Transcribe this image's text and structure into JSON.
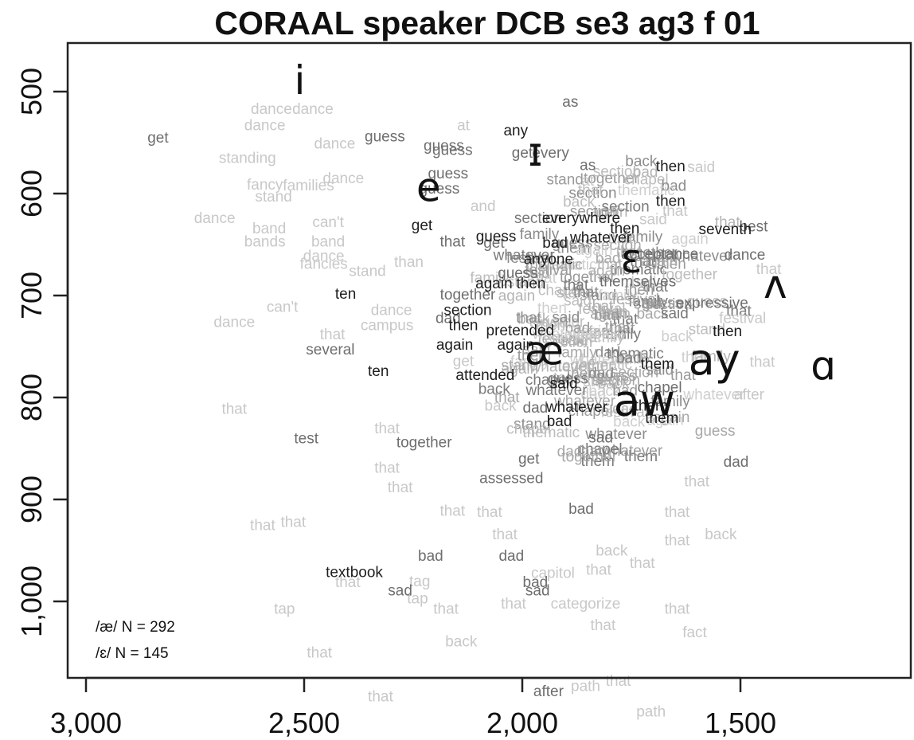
{
  "chart_data": {
    "type": "scatter",
    "title": "CORAAL speaker DCB  se3  ag3  f  01",
    "xlabel": "",
    "ylabel": "",
    "x_axis": {
      "reversed": true,
      "range": [
        3000,
        1100
      ],
      "ticks": [
        3000,
        2500,
        2000,
        1500
      ],
      "tick_labels": [
        "3,000",
        "2,500",
        "2,000",
        "1,500"
      ]
    },
    "y_axis": {
      "reversed": true,
      "range": [
        455,
        1075
      ],
      "ticks": [
        500,
        600,
        700,
        800,
        900,
        1000
      ],
      "tick_labels": [
        "500",
        "600",
        "700",
        "800",
        "900",
        "1,000"
      ]
    },
    "grid": false,
    "annotations": [
      "/æ/ N = 292",
      "/ɛ/ N = 145"
    ],
    "vowel_means": [
      {
        "label": "i",
        "x": 2510,
        "y": 490
      },
      {
        "label": "ɪ",
        "x": 1970,
        "y": 560
      },
      {
        "label": "e",
        "x": 2215,
        "y": 595
      },
      {
        "label": "ɛ",
        "x": 1750,
        "y": 665
      },
      {
        "label": "ʌ",
        "x": 1420,
        "y": 690
      },
      {
        "label": "æ",
        "x": 1950,
        "y": 755
      },
      {
        "label": "ay",
        "x": 1560,
        "y": 765
      },
      {
        "label": "ɑ",
        "x": 1310,
        "y": 770
      },
      {
        "label": "aw",
        "x": 1720,
        "y": 805
      }
    ],
    "tokens": [
      {
        "w": "as",
        "x": 1890,
        "y": 515,
        "shade": "mid"
      },
      {
        "w": "dance",
        "x": 2575,
        "y": 522,
        "shade": "light"
      },
      {
        "w": "dance",
        "x": 2480,
        "y": 522,
        "shade": "light"
      },
      {
        "w": "dance",
        "x": 2590,
        "y": 538,
        "shade": "light"
      },
      {
        "w": "at",
        "x": 2135,
        "y": 538,
        "shade": "light"
      },
      {
        "w": "any",
        "x": 2015,
        "y": 543,
        "shade": "dark"
      },
      {
        "w": "get",
        "x": 2835,
        "y": 550,
        "shade": "mid"
      },
      {
        "w": "guess",
        "x": 2315,
        "y": 549,
        "shade": "mid"
      },
      {
        "w": "dance",
        "x": 2430,
        "y": 556,
        "shade": "light"
      },
      {
        "w": "guess",
        "x": 2180,
        "y": 558,
        "shade": "mid"
      },
      {
        "w": "guess",
        "x": 2160,
        "y": 562,
        "shade": "mid"
      },
      {
        "w": "get",
        "x": 2000,
        "y": 565,
        "shade": "mid"
      },
      {
        "w": "every",
        "x": 1935,
        "y": 565,
        "shade": "mid"
      },
      {
        "w": "standing",
        "x": 2630,
        "y": 570,
        "shade": "light"
      },
      {
        "w": "as",
        "x": 1850,
        "y": 577,
        "shade": "mid"
      },
      {
        "w": "then",
        "x": 1660,
        "y": 578,
        "shade": "dark"
      },
      {
        "w": "said",
        "x": 1590,
        "y": 579,
        "shade": "light"
      },
      {
        "w": "guess",
        "x": 2170,
        "y": 585,
        "shade": "mid"
      },
      {
        "w": "dance",
        "x": 2410,
        "y": 590,
        "shade": "light"
      },
      {
        "w": "at",
        "x": 1850,
        "y": 592,
        "shade": "light"
      },
      {
        "w": "fancy",
        "x": 2590,
        "y": 596,
        "shade": "light"
      },
      {
        "w": "families",
        "x": 2490,
        "y": 597,
        "shade": "light"
      },
      {
        "w": "guess",
        "x": 2190,
        "y": 600,
        "shade": "mid"
      },
      {
        "w": "stand",
        "x": 2570,
        "y": 608,
        "shade": "light"
      },
      {
        "w": "then",
        "x": 1660,
        "y": 612,
        "shade": "dark"
      },
      {
        "w": "and",
        "x": 2090,
        "y": 617,
        "shade": "light"
      },
      {
        "w": "that",
        "x": 1650,
        "y": 622,
        "shade": "light"
      },
      {
        "w": "dance",
        "x": 2705,
        "y": 629,
        "shade": "light"
      },
      {
        "w": "everywhere",
        "x": 1865,
        "y": 629,
        "shade": "dark"
      },
      {
        "w": "can't",
        "x": 2445,
        "y": 633,
        "shade": "light"
      },
      {
        "w": "said",
        "x": 1700,
        "y": 630,
        "shade": "light"
      },
      {
        "w": "get",
        "x": 2230,
        "y": 636,
        "shade": "dark"
      },
      {
        "w": "seventh",
        "x": 1535,
        "y": 640,
        "shade": "dark"
      },
      {
        "w": "band",
        "x": 2580,
        "y": 639,
        "shade": "light"
      },
      {
        "w": "then",
        "x": 1765,
        "y": 639,
        "shade": "dark"
      },
      {
        "w": "best",
        "x": 1470,
        "y": 637,
        "shade": "mid"
      },
      {
        "w": "guess",
        "x": 2060,
        "y": 647,
        "shade": "dark"
      },
      {
        "w": "whatever",
        "x": 1820,
        "y": 648,
        "shade": "dark"
      },
      {
        "w": "bands",
        "x": 2590,
        "y": 652,
        "shade": "light"
      },
      {
        "w": "band",
        "x": 2445,
        "y": 652,
        "shade": "light"
      },
      {
        "w": "that",
        "x": 2160,
        "y": 652,
        "shade": "mid"
      },
      {
        "w": "get",
        "x": 2065,
        "y": 653,
        "shade": "mid"
      },
      {
        "w": "bad",
        "x": 1925,
        "y": 653,
        "shade": "dark"
      },
      {
        "w": "acceptance",
        "x": 1685,
        "y": 664,
        "shade": "mid"
      },
      {
        "w": "dance",
        "x": 1490,
        "y": 665,
        "shade": "mid"
      },
      {
        "w": "dance",
        "x": 2455,
        "y": 666,
        "shade": "light"
      },
      {
        "w": "anyone",
        "x": 1940,
        "y": 669,
        "shade": "dark"
      },
      {
        "w": "fancies",
        "x": 2455,
        "y": 674,
        "shade": "light"
      },
      {
        "w": "than",
        "x": 2260,
        "y": 672,
        "shade": "light"
      },
      {
        "w": "that",
        "x": 1435,
        "y": 679,
        "shade": "light"
      },
      {
        "w": "stand",
        "x": 2355,
        "y": 681,
        "shade": "light"
      },
      {
        "w": "guess",
        "x": 2010,
        "y": 683,
        "shade": "mid"
      },
      {
        "w": "again",
        "x": 2065,
        "y": 693,
        "shade": "dark"
      },
      {
        "w": "then",
        "x": 1980,
        "y": 693,
        "shade": "dark"
      },
      {
        "w": "themselves",
        "x": 1735,
        "y": 691,
        "shade": "mid"
      },
      {
        "w": "ten",
        "x": 2405,
        "y": 703,
        "shade": "dark"
      },
      {
        "w": "together",
        "x": 2125,
        "y": 704,
        "shade": "mid"
      },
      {
        "w": "can't",
        "x": 2550,
        "y": 716,
        "shade": "light"
      },
      {
        "w": "dance",
        "x": 2300,
        "y": 719,
        "shade": "light"
      },
      {
        "w": "section",
        "x": 2125,
        "y": 719,
        "shade": "dark"
      },
      {
        "w": "expressive",
        "x": 1565,
        "y": 712,
        "shade": "mid"
      },
      {
        "w": "dance",
        "x": 2660,
        "y": 731,
        "shade": "light"
      },
      {
        "w": "dad",
        "x": 2170,
        "y": 727,
        "shade": "mid"
      },
      {
        "w": "festival",
        "x": 1495,
        "y": 727,
        "shade": "light"
      },
      {
        "w": "campus",
        "x": 2310,
        "y": 734,
        "shade": "light"
      },
      {
        "w": "then",
        "x": 2135,
        "y": 734,
        "shade": "dark"
      },
      {
        "w": "pretended",
        "x": 2005,
        "y": 739,
        "shade": "dark"
      },
      {
        "w": "then",
        "x": 1530,
        "y": 740,
        "shade": "dark"
      },
      {
        "w": "that",
        "x": 2435,
        "y": 743,
        "shade": "light"
      },
      {
        "w": "again",
        "x": 2155,
        "y": 753,
        "shade": "dark"
      },
      {
        "w": "again",
        "x": 2015,
        "y": 753,
        "shade": "dark"
      },
      {
        "w": "several",
        "x": 2440,
        "y": 758,
        "shade": "mid"
      },
      {
        "w": "that",
        "x": 1450,
        "y": 770,
        "shade": "light"
      },
      {
        "w": "get",
        "x": 2135,
        "y": 769,
        "shade": "light"
      },
      {
        "w": "them",
        "x": 1690,
        "y": 772,
        "shade": "dark"
      },
      {
        "w": "ten",
        "x": 2330,
        "y": 779,
        "shade": "dark"
      },
      {
        "w": "attended",
        "x": 2085,
        "y": 783,
        "shade": "dark"
      },
      {
        "w": "said",
        "x": 1905,
        "y": 791,
        "shade": "dark"
      },
      {
        "w": "chapel",
        "x": 1685,
        "y": 795,
        "shade": "mid"
      },
      {
        "w": "after",
        "x": 1480,
        "y": 802,
        "shade": "light"
      },
      {
        "w": "back",
        "x": 2050,
        "y": 813,
        "shade": "light"
      },
      {
        "w": "whatever",
        "x": 1875,
        "y": 814,
        "shade": "dark"
      },
      {
        "w": "them",
        "x": 1705,
        "y": 813,
        "shade": "dark"
      },
      {
        "w": "that",
        "x": 2660,
        "y": 816,
        "shade": "light"
      },
      {
        "w": "dad",
        "x": 1970,
        "y": 815,
        "shade": "mid"
      },
      {
        "w": "them",
        "x": 1680,
        "y": 825,
        "shade": "dark"
      },
      {
        "w": "bad",
        "x": 1915,
        "y": 828,
        "shade": "dark"
      },
      {
        "w": "that",
        "x": 2310,
        "y": 835,
        "shade": "light"
      },
      {
        "w": "test",
        "x": 2495,
        "y": 845,
        "shade": "mid"
      },
      {
        "w": "sad",
        "x": 1820,
        "y": 844,
        "shade": "mid"
      },
      {
        "w": "together",
        "x": 2225,
        "y": 849,
        "shade": "mid"
      },
      {
        "w": "dad",
        "x": 1510,
        "y": 868,
        "shade": "mid"
      },
      {
        "w": "get",
        "x": 1985,
        "y": 865,
        "shade": "mid"
      },
      {
        "w": "that",
        "x": 2310,
        "y": 874,
        "shade": "light"
      },
      {
        "w": "assessed",
        "x": 2025,
        "y": 884,
        "shade": "mid"
      },
      {
        "w": "that",
        "x": 1600,
        "y": 887,
        "shade": "light"
      },
      {
        "w": "that",
        "x": 2280,
        "y": 893,
        "shade": "light"
      },
      {
        "w": "bad",
        "x": 1865,
        "y": 914,
        "shade": "mid"
      },
      {
        "w": "that",
        "x": 2160,
        "y": 916,
        "shade": "light"
      },
      {
        "w": "that",
        "x": 2075,
        "y": 917,
        "shade": "light"
      },
      {
        "w": "that",
        "x": 1645,
        "y": 917,
        "shade": "light"
      },
      {
        "w": "that",
        "x": 2525,
        "y": 927,
        "shade": "light"
      },
      {
        "w": "that",
        "x": 2595,
        "y": 930,
        "shade": "light"
      },
      {
        "w": "that",
        "x": 2040,
        "y": 939,
        "shade": "light"
      },
      {
        "w": "back",
        "x": 1545,
        "y": 939,
        "shade": "light"
      },
      {
        "w": "that",
        "x": 1645,
        "y": 945,
        "shade": "light"
      },
      {
        "w": "back",
        "x": 1795,
        "y": 955,
        "shade": "light"
      },
      {
        "w": "bad",
        "x": 2210,
        "y": 960,
        "shade": "mid"
      },
      {
        "w": "dad",
        "x": 2025,
        "y": 960,
        "shade": "mid"
      },
      {
        "w": "textbook",
        "x": 2385,
        "y": 976,
        "shade": "dark"
      },
      {
        "w": "capitol",
        "x": 1930,
        "y": 977,
        "shade": "light"
      },
      {
        "w": "that",
        "x": 1825,
        "y": 974,
        "shade": "light"
      },
      {
        "w": "that",
        "x": 1725,
        "y": 967,
        "shade": "light"
      },
      {
        "w": "bad",
        "x": 1970,
        "y": 986,
        "shade": "mid"
      },
      {
        "w": "that",
        "x": 2400,
        "y": 986,
        "shade": "light"
      },
      {
        "w": "tag",
        "x": 2235,
        "y": 985,
        "shade": "light"
      },
      {
        "w": "sad",
        "x": 2280,
        "y": 994,
        "shade": "mid"
      },
      {
        "w": "sad",
        "x": 1965,
        "y": 994,
        "shade": "mid"
      },
      {
        "w": "tap",
        "x": 2240,
        "y": 1002,
        "shade": "light"
      },
      {
        "w": "that",
        "x": 2020,
        "y": 1007,
        "shade": "light"
      },
      {
        "w": "categorize",
        "x": 1855,
        "y": 1007,
        "shade": "light"
      },
      {
        "w": "tap",
        "x": 2545,
        "y": 1012,
        "shade": "light"
      },
      {
        "w": "that",
        "x": 2175,
        "y": 1012,
        "shade": "light"
      },
      {
        "w": "that",
        "x": 1645,
        "y": 1012,
        "shade": "light"
      },
      {
        "w": "that",
        "x": 1815,
        "y": 1028,
        "shade": "light"
      },
      {
        "w": "fact",
        "x": 1605,
        "y": 1035,
        "shade": "light"
      },
      {
        "w": "back",
        "x": 2140,
        "y": 1044,
        "shade": "light"
      },
      {
        "w": "that",
        "x": 2465,
        "y": 1055,
        "shade": "light"
      },
      {
        "w": "that",
        "x": 1780,
        "y": 1083,
        "shade": "light"
      },
      {
        "w": "path",
        "x": 1855,
        "y": 1088,
        "shade": "light"
      },
      {
        "w": "after",
        "x": 1940,
        "y": 1093,
        "shade": "mid"
      },
      {
        "w": "that",
        "x": 2325,
        "y": 1098,
        "shade": "light"
      },
      {
        "w": "path",
        "x": 1705,
        "y": 1113,
        "shade": "light"
      }
    ],
    "cloud": {
      "center_x": 1800,
      "center_y": 725,
      "words": [
        "that",
        "then",
        "them",
        "said",
        "bad",
        "dad",
        "back",
        "section",
        "together",
        "family",
        "chapel",
        "whatever",
        "festival",
        "thematic",
        "again",
        "stand",
        "guess"
      ]
    }
  }
}
